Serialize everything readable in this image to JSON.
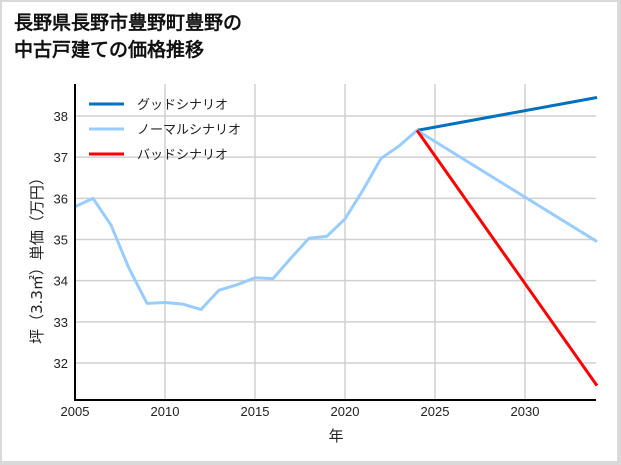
{
  "title_lines": [
    "長野県長野市豊野町豊野の",
    "中古戸建ての価格推移"
  ],
  "chart_data": {
    "type": "line",
    "title": "長野県長野市豊野町豊野の中古戸建ての価格推移",
    "xlabel": "年",
    "ylabel": "坪（3.3㎡）単価（万円）",
    "xlim": [
      2005,
      2034
    ],
    "ylim": [
      31.2,
      38.8
    ],
    "xticks": [
      2005,
      2010,
      2015,
      2020,
      2025,
      2030
    ],
    "yticks": [
      32,
      33,
      34,
      35,
      36,
      37,
      38
    ],
    "grid": true,
    "legend_position": "upper left",
    "series": [
      {
        "name": "グッドシナリオ",
        "color": "#0070c0",
        "x": [
          2024,
          2034
        ],
        "y": [
          37.65,
          38.45
        ]
      },
      {
        "name": "ノーマルシナリオ",
        "color": "#99ccff",
        "x": [
          2005,
          2006,
          2007,
          2008,
          2009,
          2010,
          2011,
          2012,
          2013,
          2014,
          2015,
          2016,
          2017,
          2018,
          2019,
          2020,
          2021,
          2022,
          2023,
          2024,
          2034
        ],
        "y": [
          35.8,
          36.0,
          35.35,
          34.3,
          33.45,
          33.47,
          33.43,
          33.3,
          33.77,
          33.9,
          34.07,
          34.05,
          34.55,
          35.03,
          35.08,
          35.5,
          36.2,
          36.97,
          37.27,
          37.65,
          34.95
        ]
      },
      {
        "name": "バッドシナリオ",
        "color": "#ff0000",
        "x": [
          2024,
          2034
        ],
        "y": [
          37.65,
          31.45
        ]
      }
    ]
  },
  "axis": {
    "xlabel": "年",
    "ylabel": "坪（3.3㎡）単価（万円）"
  }
}
